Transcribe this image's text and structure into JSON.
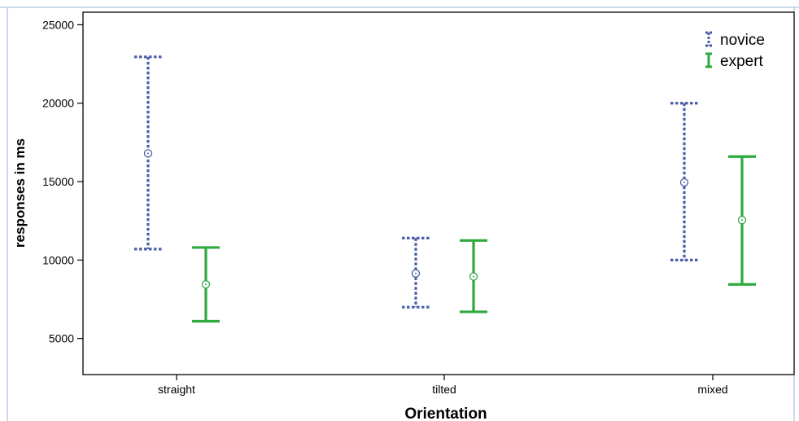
{
  "chart_data": {
    "type": "error-bar",
    "xlabel": "Orientation",
    "ylabel": "responses in ms",
    "categories": [
      "straight",
      "tilted",
      "mixed"
    ],
    "ylim": [
      2700,
      25800
    ],
    "yticks": [
      5000,
      10000,
      15000,
      20000,
      25000
    ],
    "legend_position": "top-right",
    "grid": false,
    "series": [
      {
        "name": "novice",
        "color": "#4a5fa8",
        "line_style": "dotted",
        "mean": [
          16800,
          9150,
          14950
        ],
        "lower": [
          10700,
          7000,
          10000
        ],
        "upper": [
          22950,
          11400,
          20000
        ]
      },
      {
        "name": "expert",
        "color": "#2eaa3f",
        "line_style": "solid",
        "mean": [
          8450,
          8950,
          12550
        ],
        "lower": [
          6100,
          6700,
          8450
        ],
        "upper": [
          10800,
          11250,
          16600
        ]
      }
    ]
  }
}
